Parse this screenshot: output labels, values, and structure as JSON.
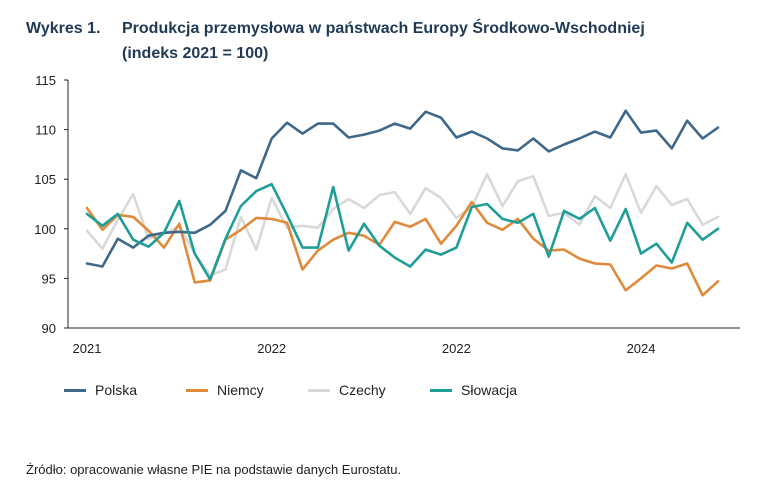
{
  "header": {
    "label": "Wykres 1.",
    "title_line1": "Produkcja przemysłowa w państwach Europy Środkowo-Wschodniej",
    "title_line2": "(indeks 2021 = 100)"
  },
  "chart_data": {
    "type": "line",
    "title": "Produkcja przemysłowa w państwach Europy Środkowo-Wschodniej (indeks 2021 = 100)",
    "xlabel": "",
    "ylabel": "",
    "ylim": [
      90,
      115
    ],
    "yticks": [
      90,
      95,
      100,
      105,
      110,
      115
    ],
    "x_tick_labels": [
      "2021",
      "2022",
      "2022",
      "2024"
    ],
    "legend_position": "bottom",
    "grid": false,
    "series": [
      {
        "name": "Polska",
        "color": "#3f6889",
        "values": [
          96.5,
          96.2,
          99.0,
          98.1,
          99.3,
          99.6,
          99.7,
          99.6,
          100.4,
          101.8,
          105.9,
          105.1,
          109.1,
          110.7,
          109.6,
          110.6,
          110.6,
          109.2,
          109.5,
          109.9,
          110.6,
          110.1,
          111.8,
          111.2,
          109.2,
          109.8,
          109.1,
          108.1,
          107.9,
          109.1,
          107.8,
          108.5,
          109.1,
          109.8,
          109.2,
          111.9,
          109.7,
          109.9,
          108.1,
          110.9,
          109.1,
          110.2
        ]
      },
      {
        "name": "Niemcy",
        "color": "#e08a3c",
        "values": [
          102.1,
          99.9,
          101.4,
          101.2,
          99.8,
          98.1,
          100.5,
          94.6,
          94.8,
          98.9,
          99.9,
          101.1,
          101.0,
          100.6,
          95.9,
          97.8,
          98.9,
          99.6,
          99.3,
          98.4,
          100.7,
          100.2,
          101.0,
          98.5,
          100.3,
          102.7,
          100.6,
          99.9,
          101.0,
          99.0,
          97.8,
          97.9,
          97.0,
          96.5,
          96.4,
          93.8,
          95.0,
          96.3,
          96.0,
          96.5,
          93.3,
          94.7
        ]
      },
      {
        "name": "Czechy",
        "color": "#d9d9d9",
        "values": [
          99.8,
          98.0,
          100.9,
          103.5,
          99.0,
          99.5,
          100.3,
          97.5,
          95.3,
          95.9,
          101.2,
          97.9,
          103.1,
          100.1,
          100.3,
          100.1,
          102.0,
          103.0,
          102.1,
          103.4,
          103.7,
          101.5,
          104.1,
          103.1,
          101.1,
          102.2,
          105.5,
          102.3,
          104.8,
          105.3,
          101.3,
          101.6,
          100.4,
          103.3,
          102.1,
          105.5,
          101.6,
          104.3,
          102.4,
          103.0,
          100.4,
          101.2
        ]
      },
      {
        "name": "Słowacja",
        "color": "#1f9e98",
        "values": [
          101.5,
          100.3,
          101.5,
          98.9,
          98.2,
          99.6,
          102.8,
          97.5,
          94.9,
          99.0,
          102.3,
          103.8,
          104.5,
          101.4,
          98.1,
          98.1,
          104.2,
          97.8,
          100.5,
          98.3,
          97.1,
          96.2,
          97.9,
          97.4,
          98.1,
          102.2,
          102.5,
          101.0,
          100.6,
          101.5,
          97.2,
          101.8,
          101.0,
          102.1,
          98.8,
          102.0,
          97.5,
          98.5,
          96.6,
          100.6,
          98.9,
          100.0
        ]
      }
    ]
  },
  "source": "Źródło: opracowanie własne PIE na podstawie danych Eurostatu."
}
